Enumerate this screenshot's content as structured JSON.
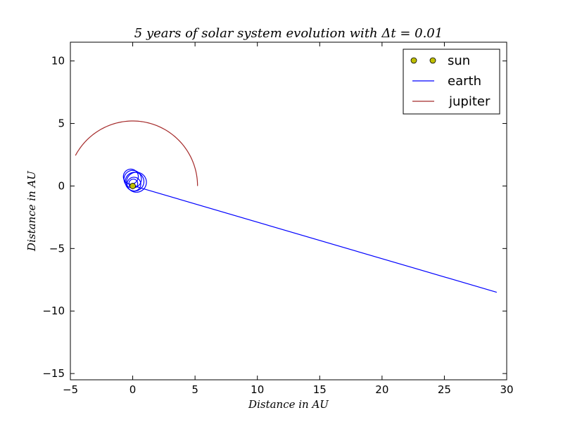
{
  "chart_data": {
    "type": "line",
    "title": "5 years of solar system evolution with Δt = 0.01",
    "xlabel": "Distance in AU",
    "ylabel": "Distance in AU",
    "xlim": [
      -5,
      30
    ],
    "ylim": [
      -15.5,
      11.5
    ],
    "xticks": [
      -5,
      0,
      5,
      10,
      15,
      20,
      25,
      30
    ],
    "yticks": [
      -15,
      -10,
      -5,
      0,
      5,
      10
    ],
    "xtick_labels": [
      "−5",
      "0",
      "5",
      "10",
      "15",
      "20",
      "25",
      "30"
    ],
    "ytick_labels": [
      "−15",
      "−10",
      "−5",
      "0",
      "5",
      "10"
    ],
    "grid": false,
    "legend_position": "top-right",
    "series": [
      {
        "name": "sun",
        "kind": "marker",
        "color": "#bfbf00",
        "x": [
          0
        ],
        "y": [
          0
        ]
      },
      {
        "name": "earth",
        "kind": "loops_then_escape",
        "color": "#0000ff",
        "loops": [
          {
            "cx": -0.15,
            "cy": 0.75,
            "r": 0.6
          },
          {
            "cx": 0.0,
            "cy": 0.55,
            "r": 0.7
          },
          {
            "cx": 0.15,
            "cy": 0.35,
            "r": 0.75
          },
          {
            "cx": 0.3,
            "cy": 0.3,
            "r": 0.8
          },
          {
            "cx": 0.1,
            "cy": 0.15,
            "r": 0.55
          },
          {
            "cx": 0.05,
            "cy": 0.2,
            "r": 0.35
          }
        ],
        "escape_start": [
          0.1,
          0.0
        ],
        "escape_end": [
          29.2,
          -8.5
        ]
      },
      {
        "name": "jupiter",
        "kind": "arc",
        "color": "#a52a2a",
        "radius": 5.2,
        "angle_start_deg": 0,
        "angle_end_deg": 152
      }
    ]
  }
}
